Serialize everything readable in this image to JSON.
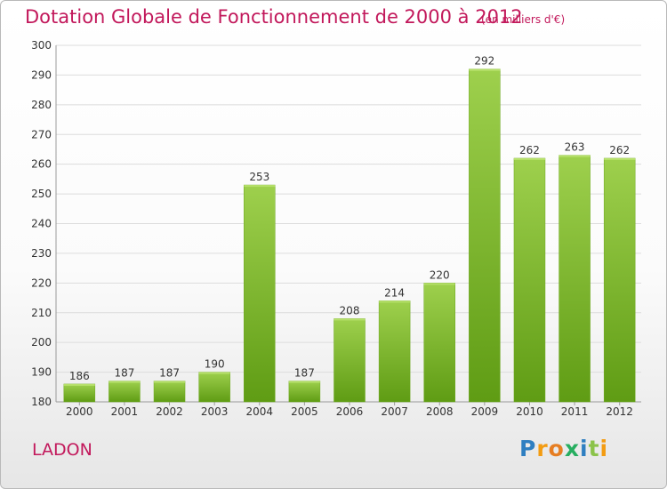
{
  "title": "Dotation Globale de Fonctionnement de 2000 à 2012",
  "subtitle": "(en milliers d'€)",
  "commune": "LADON",
  "logo": {
    "letters": [
      "P",
      "r",
      "o",
      "x",
      "i",
      "t",
      "i"
    ],
    "colors": [
      "#2f7fc1",
      "#f39c12",
      "#e67e22",
      "#27ae60",
      "#2f7fc1",
      "#8bc34a",
      "#f39c12"
    ]
  },
  "colors": {
    "accent": "#c2185b",
    "bar_light": "#9ed04d",
    "bar_dark": "#5f9c14",
    "grid": "#dcdcdc"
  },
  "chart_data": {
    "type": "bar",
    "categories": [
      "2000",
      "2001",
      "2002",
      "2003",
      "2004",
      "2005",
      "2006",
      "2007",
      "2008",
      "2009",
      "2010",
      "2011",
      "2012"
    ],
    "values": [
      186,
      187,
      187,
      190,
      253,
      187,
      208,
      214,
      220,
      292,
      262,
      263,
      262
    ],
    "title": "Dotation Globale de Fonctionnement de 2000 à 2012",
    "subtitle": "(en milliers d'€)",
    "xlabel": "",
    "ylabel": "",
    "ylim": [
      180,
      300
    ],
    "yticks": [
      180,
      190,
      200,
      210,
      220,
      230,
      240,
      250,
      260,
      270,
      280,
      290,
      300
    ],
    "grid": true,
    "legend": "none"
  }
}
